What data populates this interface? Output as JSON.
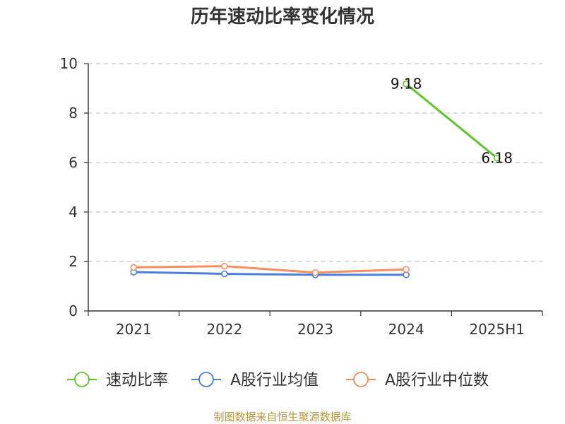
{
  "chart_data": {
    "type": "line",
    "title": "历年速动比率变化情况",
    "categories": [
      "2021",
      "2022",
      "2023",
      "2024",
      "2025H1"
    ],
    "ylim": [
      0,
      10
    ],
    "yticks": [
      0,
      2,
      4,
      6,
      8,
      10
    ],
    "grid": true,
    "legend_position": "bottom",
    "series": [
      {
        "name": "速动比率",
        "color": "#5ec62b",
        "values": [
          null,
          null,
          null,
          9.18,
          6.18
        ],
        "labels": [
          "",
          "",
          "",
          "9.18",
          "6.18"
        ]
      },
      {
        "name": "A股行业均值",
        "color": "#4a7fe0",
        "values": [
          1.57,
          1.5,
          1.46,
          1.46,
          null
        ]
      },
      {
        "name": "A股行业中位数",
        "color": "#f58f5d",
        "values": [
          1.76,
          1.81,
          1.55,
          1.68,
          null
        ]
      }
    ],
    "source": "制图数据来自恒生聚源数据库"
  }
}
